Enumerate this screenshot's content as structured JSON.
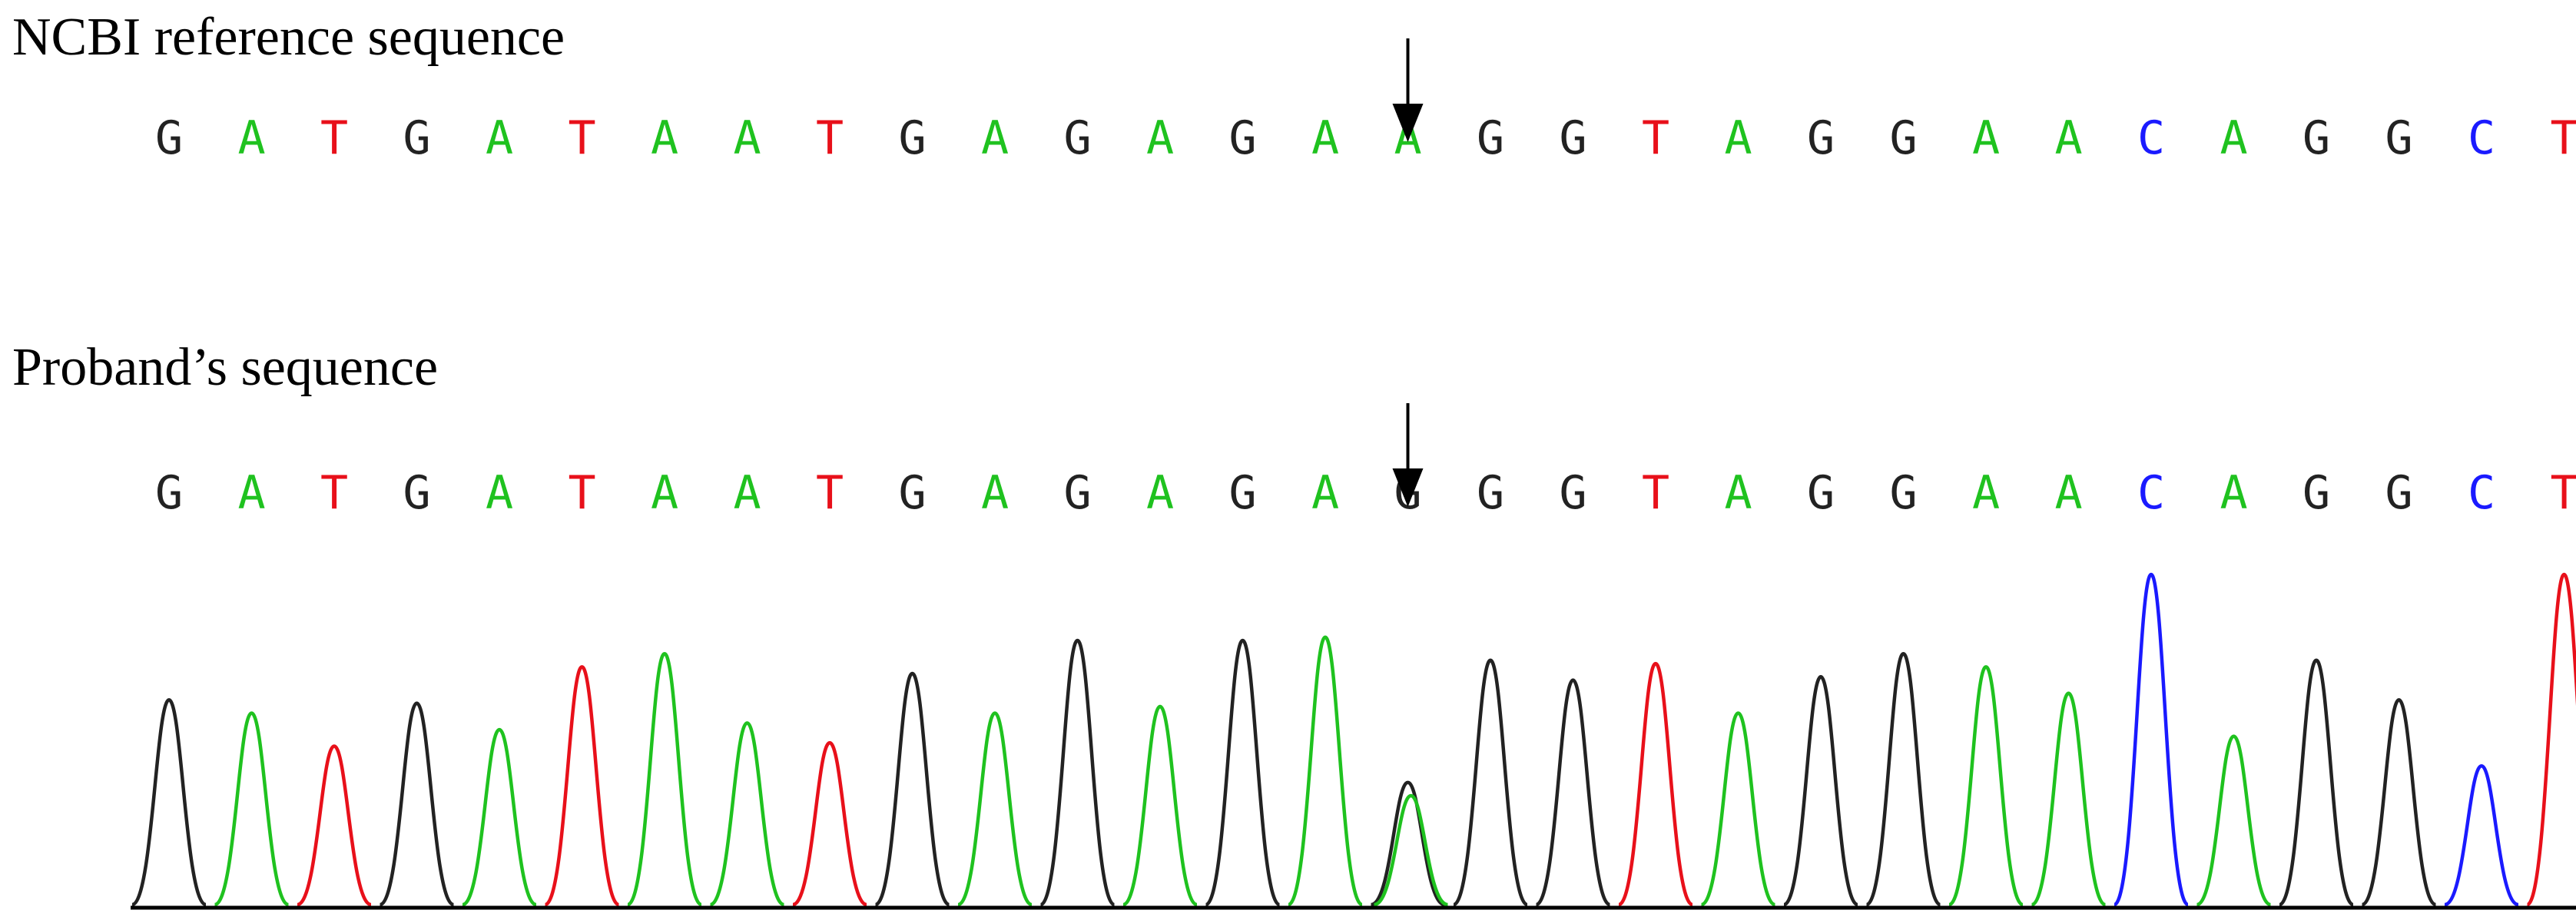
{
  "reference": {
    "title": "NCBI reference sequence",
    "bases": [
      "G",
      "A",
      "T",
      "G",
      "A",
      "T",
      "A",
      "A",
      "T",
      "G",
      "A",
      "G",
      "A",
      "G",
      "A",
      "A",
      "G",
      "G",
      "T",
      "A",
      "G",
      "G",
      "A",
      "A",
      "C",
      "A",
      "G",
      "G",
      "C",
      "T"
    ]
  },
  "proband": {
    "title": "Proband’s sequence",
    "bases": [
      "G",
      "A",
      "T",
      "G",
      "A",
      "T",
      "A",
      "A",
      "T",
      "G",
      "A",
      "G",
      "A",
      "G",
      "A",
      "G",
      "G",
      "G",
      "T",
      "A",
      "G",
      "G",
      "A",
      "A",
      "C",
      "A",
      "G",
      "G",
      "C",
      "T"
    ]
  },
  "marker": {
    "position": 16
  },
  "colors": {
    "A": "#1fc21f",
    "T": "#e8101a",
    "G": "#222222",
    "C": "#1a1aff",
    "arrow": "#000000",
    "baseline": "#000000"
  },
  "chromatogram": {
    "peaks": [
      {
        "base": "G",
        "height": 0.62
      },
      {
        "base": "A",
        "height": 0.58
      },
      {
        "base": "T",
        "height": 0.48
      },
      {
        "base": "G",
        "height": 0.61
      },
      {
        "base": "A",
        "height": 0.53
      },
      {
        "base": "T",
        "height": 0.72
      },
      {
        "base": "A",
        "height": 0.76
      },
      {
        "base": "A",
        "height": 0.55
      },
      {
        "base": "T",
        "height": 0.49
      },
      {
        "base": "G",
        "height": 0.7
      },
      {
        "base": "A",
        "height": 0.58
      },
      {
        "base": "G",
        "height": 0.8
      },
      {
        "base": "A",
        "height": 0.6
      },
      {
        "base": "G",
        "height": 0.8
      },
      {
        "base": "A",
        "height": 0.81
      },
      {
        "base": "G",
        "height": 0.37
      },
      {
        "base": "G",
        "height": 0.74
      },
      {
        "base": "G",
        "height": 0.68
      },
      {
        "base": "T",
        "height": 0.73
      },
      {
        "base": "A",
        "height": 0.58
      },
      {
        "base": "G",
        "height": 0.69
      },
      {
        "base": "G",
        "height": 0.76
      },
      {
        "base": "A",
        "height": 0.72
      },
      {
        "base": "A",
        "height": 0.64
      },
      {
        "base": "C",
        "height": 1.0
      },
      {
        "base": "A",
        "height": 0.51
      },
      {
        "base": "G",
        "height": 0.74
      },
      {
        "base": "G",
        "height": 0.62
      },
      {
        "base": "C",
        "height": 0.42
      },
      {
        "base": "T",
        "height": 1.0
      }
    ],
    "secondary": [
      {
        "position": 16,
        "base": "A",
        "height": 0.33
      }
    ]
  }
}
